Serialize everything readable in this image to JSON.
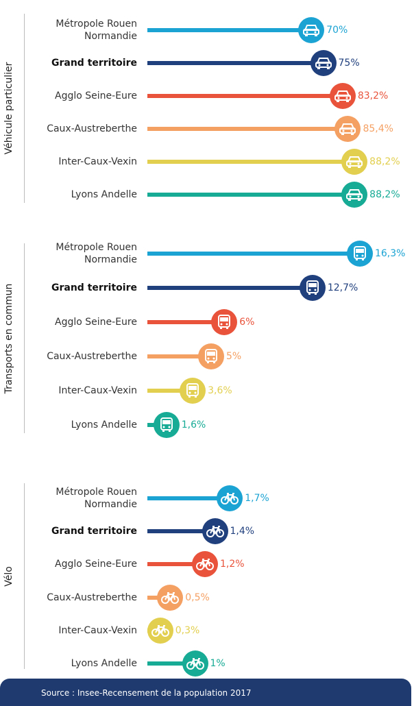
{
  "chart_data": [
    {
      "type": "bar",
      "title": "Véhicule particulier",
      "categories": [
        "Métropole Rouen Normandie",
        "Grand territoire",
        "Agglo Seine-Eure",
        "Caux-Austreberthe",
        "Inter-Caux-Vexin",
        "Lyons Andelle"
      ],
      "values": [
        70,
        75,
        83.2,
        85.4,
        88.2,
        88.2
      ],
      "value_labels": [
        "70%",
        "75%",
        "83,2%",
        "85,4%",
        "88,2%",
        "88,2%"
      ],
      "colors": [
        "#1ba3d3",
        "#1f3f7d",
        "#e9533b",
        "#f5a063",
        "#e2cf4f",
        "#17ab95"
      ]
    },
    {
      "type": "bar",
      "title": "Transports en commun",
      "categories": [
        "Métropole Rouen Normandie",
        "Grand territoire",
        "Agglo Seine-Eure",
        "Caux-Austreberthe",
        "Inter-Caux-Vexin",
        "Lyons Andelle"
      ],
      "values": [
        16.3,
        12.7,
        6,
        5,
        3.6,
        1.6
      ],
      "value_labels": [
        "16,3%",
        "12,7%",
        "6%",
        "5%",
        "3,6%",
        "1,6%"
      ],
      "colors": [
        "#1ba3d3",
        "#1f3f7d",
        "#e9533b",
        "#f5a063",
        "#e2cf4f",
        "#17ab95"
      ]
    },
    {
      "type": "bar",
      "title": "Vélo",
      "categories": [
        "Métropole Rouen Normandie",
        "Grand territoire",
        "Agglo Seine-Eure",
        "Caux-Austreberthe",
        "Inter-Caux-Vexin",
        "Lyons Andelle"
      ],
      "values": [
        1.7,
        1.4,
        1.2,
        0.5,
        0.3,
        1
      ],
      "value_labels": [
        "1,7%",
        "1,4%",
        "1,2%",
        "0,5%",
        "0,3%",
        "1%"
      ],
      "colors": [
        "#1ba3d3",
        "#1f3f7d",
        "#e9533b",
        "#f5a063",
        "#e2cf4f",
        "#17ab95"
      ]
    }
  ],
  "source": "Source : Insee-Recensement de la population 2017"
}
